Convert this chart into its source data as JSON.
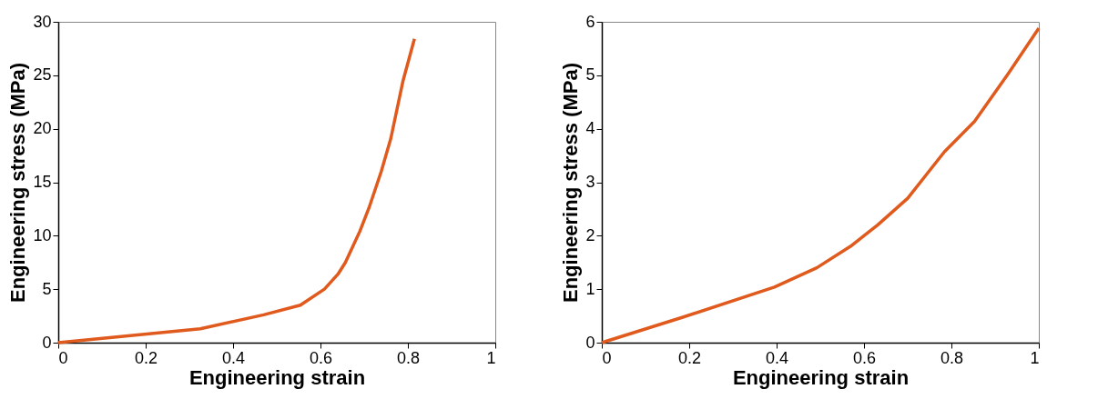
{
  "chart_data": [
    {
      "type": "line",
      "xlabel": "Engineering strain",
      "ylabel": "Engineering stress (MPa)",
      "xlim": [
        0,
        1
      ],
      "ylim": [
        0,
        30
      ],
      "xticks": [
        0,
        0.2,
        0.4,
        0.6,
        0.8,
        1
      ],
      "yticks": [
        0,
        5,
        10,
        15,
        20,
        25,
        30
      ],
      "grid": false,
      "legend": false,
      "marker": "none",
      "line_style": "solid",
      "series": [
        {
          "color": "#e05a1e",
          "x": [
            0,
            0.325,
            0.47,
            0.554,
            0.609,
            0.64,
            0.657,
            0.69,
            0.711,
            0.739,
            0.761,
            0.789,
            0.815
          ],
          "values": [
            0,
            1.3,
            2.6,
            3.5,
            5.0,
            6.4,
            7.5,
            10.4,
            12.6,
            16.0,
            19.1,
            24.5,
            28.4
          ]
        }
      ]
    },
    {
      "type": "line",
      "xlabel": "Engineering strain",
      "ylabel": "Engineering stress (MPa)",
      "xlim": [
        0,
        1
      ],
      "ylim": [
        0,
        6
      ],
      "xticks": [
        0,
        0.2,
        0.4,
        0.6,
        0.8,
        1
      ],
      "yticks": [
        0,
        1,
        2,
        3,
        4,
        5,
        6
      ],
      "grid": false,
      "legend": false,
      "marker": "none",
      "line_style": "solid",
      "series": [
        {
          "color": "#e05a1e",
          "x": [
            0,
            0.187,
            0.395,
            0.492,
            0.569,
            0.631,
            0.7,
            0.784,
            0.853,
            0.929,
            1.0
          ],
          "values": [
            0,
            0.48,
            1.04,
            1.4,
            1.8,
            2.2,
            2.7,
            3.57,
            4.14,
            5.02,
            5.88
          ]
        }
      ]
    }
  ]
}
